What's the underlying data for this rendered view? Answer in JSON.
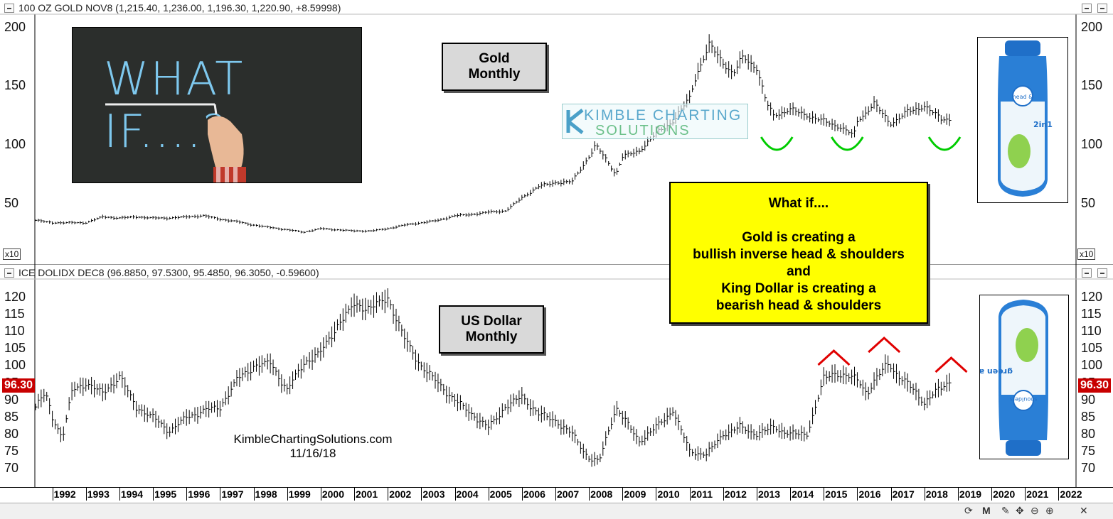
{
  "gold_panel": {
    "title": "100 OZ GOLD NOV8 (1,215.40, 1,236.00, 1,196.30, 1,220.90, +8.59998)",
    "multiplier": "x10",
    "label_line1": "Gold",
    "label_line2": "Monthly"
  },
  "dollar_panel": {
    "title": "ICE DOLIDX DEC8 (96.8850, 97.5300, 95.4850, 96.3050, -0.59600)",
    "last_value": "96.30",
    "label_line1": "US Dollar",
    "label_line2": "Monthly"
  },
  "what_if_image": {
    "chalk_text": "WHAT IF....?"
  },
  "watermark": {
    "line1": "KIMBLE CHARTING",
    "line2": "SOLUTIONS"
  },
  "callout": {
    "lines": [
      "What if....",
      "",
      "Gold is creating a",
      "bullish inverse head & shoulders",
      "and",
      "King Dollar is creating a",
      "bearish head & shoulders"
    ]
  },
  "footer": {
    "site": "KimbleChartingSolutions.com",
    "date": "11/16/18"
  },
  "product": {
    "brand_line1": "head &",
    "brand_line2": "shoulders",
    "variant": "2in1",
    "flavor": "green apple"
  },
  "colors": {
    "gold_marks": "#00cc00",
    "dollar_marks": "#e00000",
    "callout_bg": "#ffff00",
    "price_badge": "#c80000"
  },
  "toolbar_icons": [
    "refresh-icon",
    "M",
    "wrench-icon",
    "move-icon",
    "zoom-out-icon",
    "zoom-in-icon",
    "close-icon"
  ],
  "chart_data": [
    {
      "type": "line",
      "title": "Gold Monthly",
      "ylabel": "",
      "ylim": [
        0,
        210
      ],
      "yticks": [
        50,
        100,
        150,
        200
      ],
      "x": [
        1991.5,
        1992,
        1992.5,
        1993,
        1993.5,
        1994,
        1994.5,
        1995,
        1995.5,
        1996,
        1996.5,
        1997,
        1997.5,
        1998,
        1998.5,
        1999,
        1999.5,
        2000,
        2000.5,
        2001,
        2001.5,
        2002,
        2002.5,
        2003,
        2003.5,
        2004,
        2004.5,
        2005,
        2005.5,
        2006,
        2006.5,
        2007,
        2007.5,
        2008,
        2008.2,
        2008.5,
        2008.8,
        2009,
        2009.5,
        2010,
        2010.5,
        2011,
        2011.2,
        2011.6,
        2012,
        2012.3,
        2012.6,
        2013,
        2013.3,
        2013.5,
        2014,
        2014.5,
        2015,
        2015.5,
        2015.9,
        2016,
        2016.5,
        2017,
        2017.5,
        2018,
        2018.5,
        2018.8
      ],
      "values": [
        36,
        34,
        34,
        34,
        39,
        38,
        39,
        38,
        38,
        39,
        40,
        37,
        35,
        32,
        30,
        28,
        26,
        29,
        28,
        27,
        27,
        29,
        32,
        34,
        36,
        40,
        41,
        43,
        44,
        55,
        65,
        68,
        69,
        90,
        100,
        88,
        75,
        90,
        95,
        110,
        120,
        140,
        160,
        185,
        170,
        160,
        175,
        165,
        135,
        125,
        130,
        125,
        120,
        115,
        108,
        120,
        135,
        118,
        128,
        133,
        122,
        122
      ]
    },
    {
      "type": "line",
      "title": "US Dollar Monthly",
      "ylabel": "",
      "ylim": [
        65,
        125
      ],
      "yticks": [
        70,
        75,
        80,
        85,
        90,
        95,
        100,
        105,
        110,
        115,
        120
      ],
      "x": [
        1991.5,
        1991.8,
        1992,
        1992.3,
        1992.6,
        1993,
        1993.5,
        1994,
        1994.5,
        1995,
        1995.5,
        1996,
        1996.5,
        1997,
        1997.5,
        1998,
        1998.5,
        1999,
        1999.5,
        2000,
        2000.5,
        2001,
        2001.5,
        2002,
        2002.5,
        2003,
        2003.5,
        2004,
        2004.5,
        2005,
        2005.5,
        2006,
        2006.5,
        2007,
        2007.5,
        2008,
        2008.3,
        2008.8,
        2009,
        2009.5,
        2010,
        2010.5,
        2011,
        2011.5,
        2012,
        2012.5,
        2013,
        2013.5,
        2014,
        2014.5,
        2015,
        2015.3,
        2015.6,
        2016,
        2016.3,
        2016.9,
        2017.3,
        2017.7,
        2018,
        2018.3,
        2018.8
      ],
      "values": [
        88,
        92,
        85,
        79,
        93,
        95,
        92,
        97,
        88,
        85,
        81,
        85,
        87,
        88,
        96,
        100,
        101,
        93,
        101,
        104,
        112,
        118,
        117,
        120,
        108,
        100,
        95,
        90,
        86,
        82,
        88,
        91,
        86,
        84,
        80,
        73,
        72,
        88,
        85,
        78,
        82,
        87,
        75,
        74,
        80,
        82,
        80,
        82,
        80,
        80,
        96,
        98,
        97,
        96,
        92,
        101,
        96,
        93,
        89,
        92,
        96
      ]
    }
  ]
}
